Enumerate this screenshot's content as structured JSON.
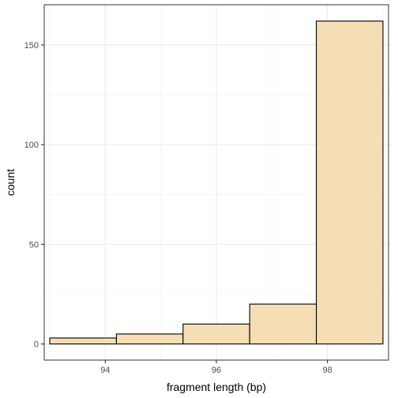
{
  "chart_data": {
    "type": "bar",
    "title": "",
    "xlabel": "fragment length (bp)",
    "ylabel": "count",
    "xlim": [
      92.9,
      99.1
    ],
    "ylim": [
      -8.1,
      170.2
    ],
    "x_ticks": [
      94,
      96,
      98
    ],
    "x_tick_labels": [
      "94",
      "96",
      "98"
    ],
    "y_ticks": [
      0,
      50,
      100,
      150
    ],
    "y_tick_labels": [
      "0",
      "50",
      "100",
      "150"
    ],
    "bins": [
      {
        "start": 93.0,
        "end": 94.2,
        "count": 3
      },
      {
        "start": 94.2,
        "end": 95.4,
        "count": 5
      },
      {
        "start": 95.4,
        "end": 96.6,
        "count": 10
      },
      {
        "start": 96.6,
        "end": 97.8,
        "count": 20
      },
      {
        "start": 97.8,
        "end": 99.0,
        "count": 162
      }
    ],
    "bar_fill": "#f5deb3",
    "bar_stroke": "#000000",
    "grid": true,
    "legend": "none"
  }
}
